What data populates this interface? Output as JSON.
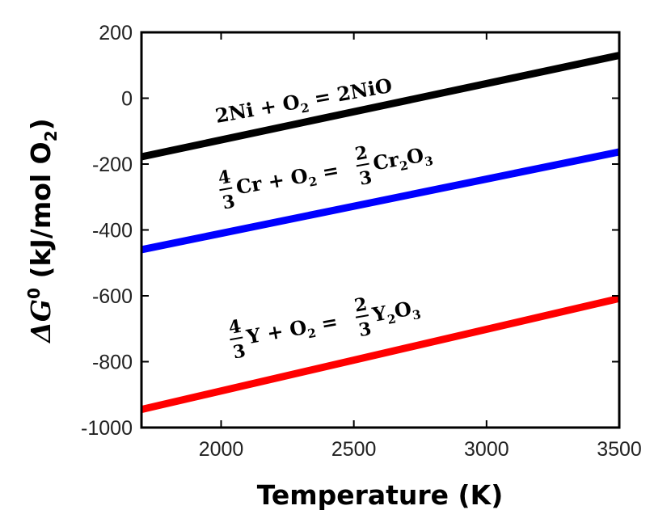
{
  "chart_data": {
    "type": "line",
    "title": "",
    "xlabel": "Temperature (K)",
    "ylabel_prefix": "ΔG",
    "ylabel_sup": "0",
    "ylabel_rest": " (kJ/mol O",
    "ylabel_sub": "2",
    "ylabel_close": ")",
    "xlim": [
      1700,
      3500
    ],
    "ylim": [
      -1000,
      200
    ],
    "xticks": [
      2000,
      2500,
      3000,
      3500
    ],
    "xtick_labels": [
      "2000",
      "2500",
      "3000",
      "3500"
    ],
    "yticks": [
      200,
      0,
      -200,
      -400,
      -600,
      -800,
      -1000
    ],
    "ytick_labels": [
      "200",
      "0",
      "-200",
      "-400",
      "-600",
      "-800",
      "-1000"
    ],
    "grid": false,
    "series": [
      {
        "name": "2Ni + O2 = 2NiO",
        "color": "#000000",
        "x": [
          1700,
          3500
        ],
        "y": [
          -178,
          130
        ],
        "label": {
          "lhs_coef": "2Ni",
          "plus": " + O",
          "o_sub": "2",
          "equals": " = ",
          "rhs": "2NiO"
        }
      },
      {
        "name": "4/3 Cr + O2 = 2/3 Cr2O3",
        "color": "#0000ff",
        "x": [
          1700,
          3500
        ],
        "y": [
          -460,
          -163
        ],
        "label": {
          "lhs_num": "4",
          "lhs_den": "3",
          "lhs_species": "Cr",
          "plus": " + O",
          "o_sub": "2",
          "equals": " = ",
          "rhs_num": "2",
          "rhs_den": "3",
          "rhs_a": "Cr",
          "rhs_a_sub": "2",
          "rhs_b": "O",
          "rhs_b_sub": "3"
        }
      },
      {
        "name": "4/3 Y + O2 = 2/3 Y2O3",
        "color": "#ff0000",
        "x": [
          1700,
          3500
        ],
        "y": [
          -945,
          -608
        ],
        "label": {
          "lhs_num": "4",
          "lhs_den": "3",
          "lhs_species": "Y",
          "plus": " + O",
          "o_sub": "2",
          "equals": " = ",
          "rhs_num": "2",
          "rhs_den": "3",
          "rhs_a": "Y",
          "rhs_a_sub": "2",
          "rhs_b": "O",
          "rhs_b_sub": "3"
        }
      }
    ]
  }
}
